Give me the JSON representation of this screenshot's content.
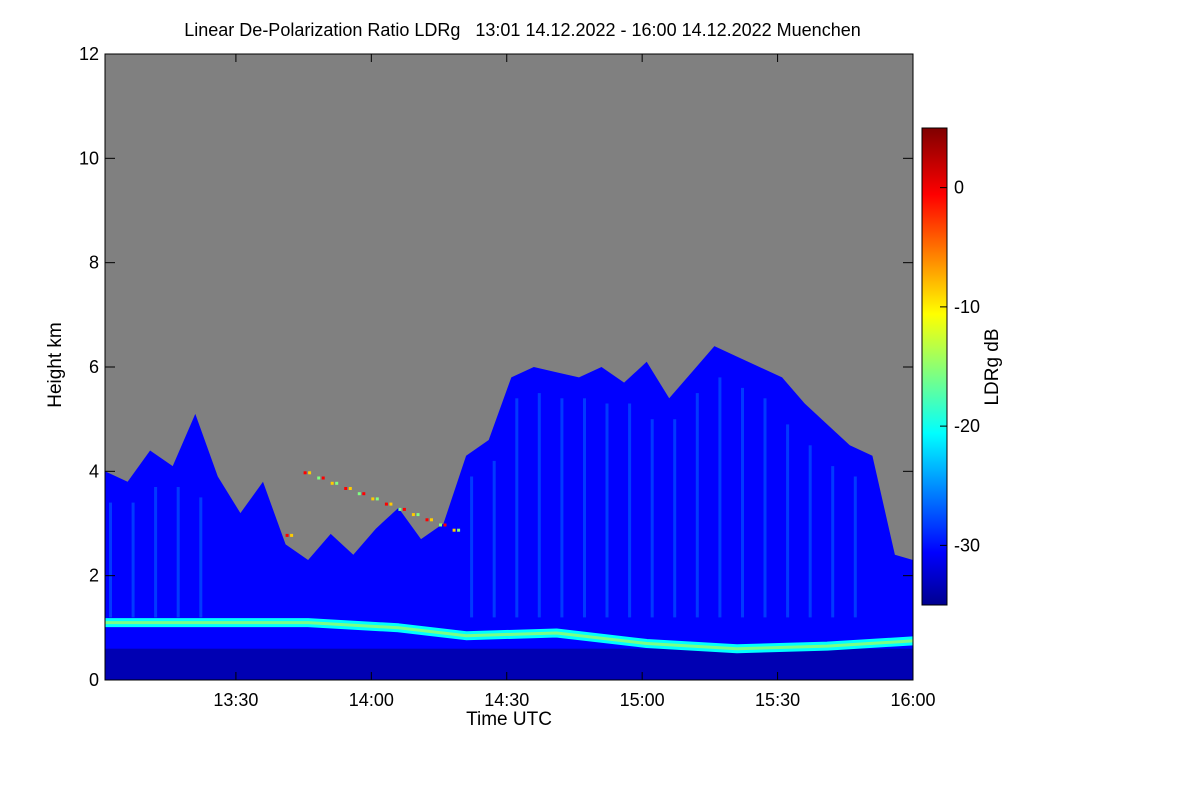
{
  "chart_data": {
    "type": "heatmap",
    "title": "Linear De-Polarization Ratio LDRg   13:01 14.12.2022 - 16:00 14.12.2022 Muenchen",
    "xlabel": "Time UTC",
    "ylabel": "Height km",
    "colorbar_label": "LDRg dB",
    "x_range": [
      "13:01",
      "16:00"
    ],
    "x_ticks": [
      "13:30",
      "14:00",
      "14:30",
      "15:00",
      "15:30",
      "16:00"
    ],
    "ylim": [
      0,
      12
    ],
    "y_ticks": [
      "0",
      "2",
      "4",
      "6",
      "8",
      "10",
      "12"
    ],
    "colorbar_range": [
      -35,
      5
    ],
    "colorbar_ticks": [
      "0",
      "-10",
      "-20",
      "-30"
    ],
    "colormap": "jet",
    "background_no_signal_color": "#808080",
    "legend_position": "right",
    "cloud_top_km": [
      {
        "time": "13:01",
        "top": 4.0
      },
      {
        "time": "13:06",
        "top": 3.8
      },
      {
        "time": "13:11",
        "top": 4.4
      },
      {
        "time": "13:16",
        "top": 4.1
      },
      {
        "time": "13:21",
        "top": 5.1
      },
      {
        "time": "13:26",
        "top": 3.9
      },
      {
        "time": "13:31",
        "top": 3.2
      },
      {
        "time": "13:36",
        "top": 3.8
      },
      {
        "time": "13:41",
        "top": 2.6
      },
      {
        "time": "13:46",
        "top": 2.3
      },
      {
        "time": "13:51",
        "top": 2.8
      },
      {
        "time": "13:56",
        "top": 2.4
      },
      {
        "time": "14:01",
        "top": 2.9
      },
      {
        "time": "14:06",
        "top": 3.3
      },
      {
        "time": "14:11",
        "top": 2.7
      },
      {
        "time": "14:16",
        "top": 3.0
      },
      {
        "time": "14:21",
        "top": 4.3
      },
      {
        "time": "14:26",
        "top": 4.6
      },
      {
        "time": "14:31",
        "top": 5.8
      },
      {
        "time": "14:36",
        "top": 6.0
      },
      {
        "time": "14:41",
        "top": 5.9
      },
      {
        "time": "14:46",
        "top": 5.8
      },
      {
        "time": "14:51",
        "top": 6.0
      },
      {
        "time": "14:56",
        "top": 5.7
      },
      {
        "time": "15:01",
        "top": 6.1
      },
      {
        "time": "15:06",
        "top": 5.4
      },
      {
        "time": "15:11",
        "top": 5.9
      },
      {
        "time": "15:16",
        "top": 6.4
      },
      {
        "time": "15:21",
        "top": 6.2
      },
      {
        "time": "15:26",
        "top": 6.0
      },
      {
        "time": "15:31",
        "top": 5.8
      },
      {
        "time": "15:36",
        "top": 5.3
      },
      {
        "time": "15:41",
        "top": 4.9
      },
      {
        "time": "15:46",
        "top": 4.5
      },
      {
        "time": "15:51",
        "top": 4.3
      },
      {
        "time": "15:56",
        "top": 2.4
      },
      {
        "time": "16:00",
        "top": 2.3
      }
    ],
    "boundary_layer_band_km": [
      {
        "time": "13:01",
        "height": 1.1
      },
      {
        "time": "13:46",
        "height": 1.1
      },
      {
        "time": "14:06",
        "height": 1.0
      },
      {
        "time": "14:21",
        "height": 0.85
      },
      {
        "time": "14:41",
        "height": 0.9
      },
      {
        "time": "15:01",
        "height": 0.7
      },
      {
        "time": "15:21",
        "height": 0.6
      },
      {
        "time": "15:41",
        "height": 0.65
      },
      {
        "time": "16:00",
        "height": 0.75
      }
    ],
    "band_ldr_db": -20,
    "cloud_ldr_db": -30,
    "near_surface_ldr_db": -33,
    "scattered_high_ldr_db": [
      0,
      -8,
      -15
    ]
  }
}
